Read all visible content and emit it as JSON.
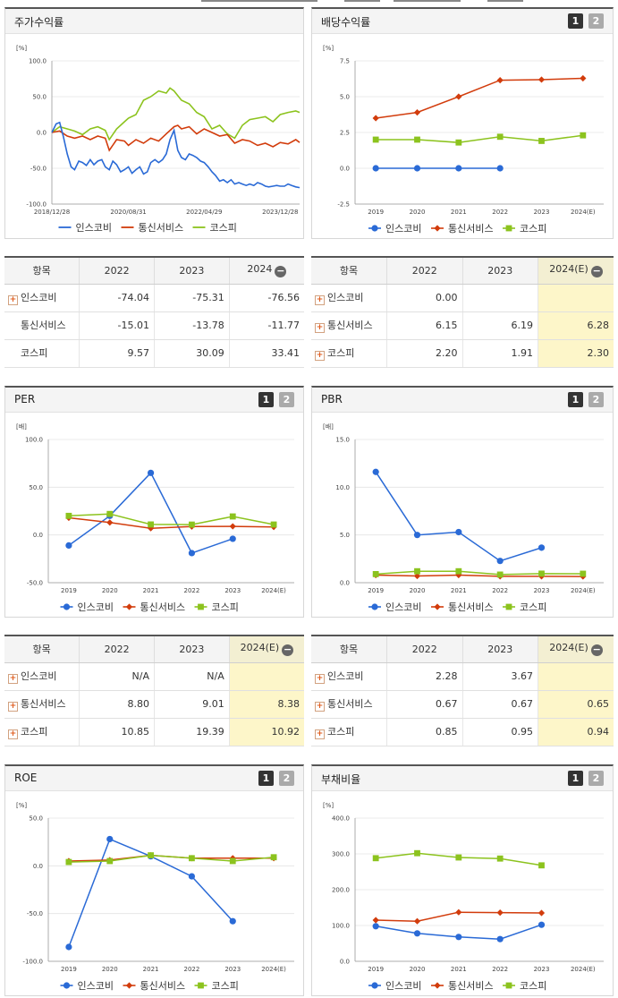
{
  "series_names": [
    "인스코비",
    "통신서비스",
    "코스피"
  ],
  "colors": {
    "inscobe": "#2a6ad6",
    "telecom": "#d23c0c",
    "kospi": "#8cc31e"
  },
  "series_markers": [
    "circle",
    "diamond",
    "square"
  ],
  "buttons": {
    "b1": "1",
    "b2": "2",
    "minus": "−",
    "plus": "+"
  },
  "panels": {
    "stock_return": {
      "title": "주가수익률"
    },
    "dividend": {
      "title": "배당수익률"
    },
    "per": {
      "title": "PER"
    },
    "pbr": {
      "title": "PBR"
    },
    "roe": {
      "title": "ROE"
    },
    "debt": {
      "title": "부채비율"
    }
  },
  "chart_data": [
    {
      "id": "stock_return",
      "type": "line",
      "title": "주가수익률",
      "unit": "[%]",
      "ylim": [
        -100,
        100
      ],
      "yticks": [
        "100.0",
        "50.0",
        "0.0",
        "-50.0",
        "-100.0"
      ],
      "xticks": [
        "2018/12/28",
        "2020/08/31",
        "2022/04/29",
        "2023/12/28"
      ],
      "x_range": [
        "2018-12-28",
        "2024-05-31"
      ],
      "series": [
        {
          "name": "인스코비",
          "x": [
            "2018-12-28",
            "2019-01-31",
            "2019-02-28",
            "2019-03-29",
            "2019-04-30",
            "2019-05-31",
            "2019-06-28",
            "2019-07-31",
            "2019-08-30",
            "2019-09-30",
            "2019-10-31",
            "2019-11-29",
            "2019-12-30",
            "2020-01-31",
            "2020-02-28",
            "2020-03-31",
            "2020-04-29",
            "2020-05-29",
            "2020-06-30",
            "2020-07-31",
            "2020-08-31",
            "2020-09-29",
            "2020-10-30",
            "2020-11-30",
            "2020-12-30",
            "2021-01-29",
            "2021-02-26",
            "2021-03-31",
            "2021-04-30",
            "2021-05-31",
            "2021-06-30",
            "2021-07-30",
            "2021-08-31",
            "2021-09-30",
            "2021-10-29",
            "2021-11-30",
            "2021-12-30",
            "2022-01-28",
            "2022-02-28",
            "2022-03-31",
            "2022-04-29",
            "2022-05-31",
            "2022-06-30",
            "2022-07-29",
            "2022-08-31",
            "2022-09-30",
            "2022-10-31",
            "2022-11-30",
            "2022-12-29",
            "2023-01-31",
            "2023-02-28",
            "2023-03-31",
            "2023-04-28",
            "2023-05-31",
            "2023-06-30",
            "2023-07-31",
            "2023-08-31",
            "2023-09-27",
            "2023-10-31",
            "2023-11-30",
            "2023-12-28",
            "2024-01-31",
            "2024-02-29",
            "2024-03-29",
            "2024-04-30",
            "2024-05-31"
          ],
          "values": [
            0,
            12,
            14,
            -5,
            -30,
            -48,
            -52,
            -40,
            -42,
            -46,
            -38,
            -45,
            -40,
            -38,
            -48,
            -52,
            -40,
            -45,
            -55,
            -52,
            -48,
            -57,
            -52,
            -48,
            -58,
            -55,
            -42,
            -38,
            -42,
            -38,
            -30,
            -10,
            3,
            -25,
            -35,
            -38,
            -30,
            -32,
            -35,
            -40,
            -42,
            -48,
            -55,
            -60,
            -68,
            -66,
            -70,
            -66,
            -72,
            -70,
            -72,
            -74,
            -72,
            -74,
            -70,
            -72,
            -75,
            -76,
            -75,
            -74,
            -75,
            -75,
            -72,
            -74,
            -76,
            -77
          ]
        },
        {
          "name": "통신서비스",
          "x": [
            "2018-12-28",
            "2019-02-28",
            "2019-04-30",
            "2019-06-28",
            "2019-08-30",
            "2019-10-31",
            "2019-12-30",
            "2020-02-28",
            "2020-03-31",
            "2020-05-29",
            "2020-07-31",
            "2020-08-31",
            "2020-10-30",
            "2020-12-30",
            "2021-02-26",
            "2021-04-30",
            "2021-06-30",
            "2021-08-31",
            "2021-09-30",
            "2021-10-29",
            "2021-12-30",
            "2022-02-28",
            "2022-04-29",
            "2022-06-30",
            "2022-08-31",
            "2022-10-31",
            "2022-12-29",
            "2023-02-28",
            "2023-04-28",
            "2023-06-30",
            "2023-08-31",
            "2023-10-31",
            "2023-12-28",
            "2024-02-29",
            "2024-04-30",
            "2024-05-31"
          ],
          "values": [
            0,
            2,
            -5,
            -8,
            -5,
            -10,
            -5,
            -8,
            -25,
            -10,
            -12,
            -18,
            -10,
            -15,
            -8,
            -12,
            -2,
            8,
            10,
            5,
            8,
            -2,
            5,
            0,
            -5,
            -3,
            -15,
            -10,
            -12,
            -18,
            -15,
            -20,
            -14,
            -16,
            -10,
            -14
          ]
        },
        {
          "name": "코스피",
          "x": [
            "2018-12-28",
            "2019-02-28",
            "2019-04-30",
            "2019-06-28",
            "2019-08-30",
            "2019-10-31",
            "2019-12-30",
            "2020-02-28",
            "2020-03-31",
            "2020-05-29",
            "2020-07-31",
            "2020-08-31",
            "2020-10-30",
            "2020-12-30",
            "2021-02-26",
            "2021-04-30",
            "2021-06-30",
            "2021-07-30",
            "2021-08-31",
            "2021-10-29",
            "2021-12-30",
            "2022-02-28",
            "2022-04-29",
            "2022-06-30",
            "2022-08-31",
            "2022-10-31",
            "2022-12-29",
            "2023-02-28",
            "2023-04-28",
            "2023-06-30",
            "2023-08-31",
            "2023-10-31",
            "2023-12-28",
            "2024-02-29",
            "2024-04-30",
            "2024-05-31"
          ],
          "values": [
            0,
            8,
            5,
            2,
            -3,
            5,
            8,
            3,
            -10,
            5,
            15,
            20,
            25,
            45,
            50,
            58,
            55,
            62,
            58,
            45,
            40,
            28,
            22,
            5,
            10,
            -2,
            -8,
            10,
            18,
            20,
            22,
            15,
            25,
            28,
            30,
            28
          ]
        }
      ]
    },
    {
      "id": "dividend",
      "type": "line",
      "title": "배당수익률",
      "unit": "[%]",
      "ylim": [
        -2.5,
        7.5
      ],
      "yticks": [
        "7.5",
        "5.0",
        "2.5",
        "0.0",
        "-2.5"
      ],
      "categories": [
        "2019",
        "2020",
        "2021",
        "2022",
        "2023",
        "2024(E)"
      ],
      "series": [
        {
          "name": "인스코비",
          "values": [
            0.0,
            0.0,
            0.0,
            0.0,
            null,
            null
          ]
        },
        {
          "name": "통신서비스",
          "values": [
            3.5,
            3.9,
            5.0,
            6.15,
            6.19,
            6.28
          ]
        },
        {
          "name": "코스피",
          "values": [
            2.0,
            2.0,
            1.8,
            2.2,
            1.91,
            2.3
          ]
        }
      ]
    },
    {
      "id": "per",
      "type": "line",
      "title": "PER",
      "unit": "[배]",
      "ylim": [
        -50,
        100
      ],
      "yticks": [
        "100.0",
        "50.0",
        "0.0",
        "-50.0"
      ],
      "categories": [
        "2019",
        "2020",
        "2021",
        "2022",
        "2023",
        "2024(E)"
      ],
      "series": [
        {
          "name": "인스코비",
          "values": [
            -11,
            20,
            65,
            -19,
            -4,
            null
          ]
        },
        {
          "name": "통신서비스",
          "values": [
            18,
            13,
            7,
            8.8,
            9.01,
            8.38
          ]
        },
        {
          "name": "코스피",
          "values": [
            20,
            22,
            11,
            10.85,
            19.39,
            10.92
          ]
        }
      ]
    },
    {
      "id": "pbr",
      "type": "line",
      "title": "PBR",
      "unit": "[배]",
      "ylim": [
        0,
        15
      ],
      "yticks": [
        "15.0",
        "10.0",
        "5.0",
        "0.0"
      ],
      "categories": [
        "2019",
        "2020",
        "2021",
        "2022",
        "2023",
        "2024(E)"
      ],
      "series": [
        {
          "name": "인스코비",
          "values": [
            11.6,
            5.0,
            5.3,
            2.28,
            3.67,
            null
          ]
        },
        {
          "name": "통신서비스",
          "values": [
            0.8,
            0.7,
            0.8,
            0.67,
            0.67,
            0.65
          ]
        },
        {
          "name": "코스피",
          "values": [
            0.9,
            1.2,
            1.2,
            0.85,
            0.95,
            0.94
          ]
        }
      ]
    },
    {
      "id": "roe",
      "type": "line",
      "title": "ROE",
      "unit": "[%]",
      "ylim": [
        -100,
        50
      ],
      "yticks": [
        "50.0",
        "0.0",
        "-50.0",
        "-100.0"
      ],
      "categories": [
        "2019",
        "2020",
        "2021",
        "2022",
        "2023",
        "2024(E)"
      ],
      "series": [
        {
          "name": "인스코비",
          "values": [
            -85,
            28,
            10,
            -11,
            -58,
            null
          ]
        },
        {
          "name": "통신서비스",
          "values": [
            5,
            6,
            11,
            8,
            8,
            8
          ]
        },
        {
          "name": "코스피",
          "values": [
            4,
            5,
            11,
            8,
            5,
            9
          ]
        }
      ]
    },
    {
      "id": "debt",
      "type": "line",
      "title": "부채비율",
      "unit": "[%]",
      "ylim": [
        0,
        400
      ],
      "yticks": [
        "400.0",
        "300.0",
        "200.0",
        "100.0",
        "0.0"
      ],
      "categories": [
        "2019",
        "2020",
        "2021",
        "2022",
        "2023",
        "2024(E)"
      ],
      "series": [
        {
          "name": "인스코비",
          "values": [
            98,
            78,
            68,
            62,
            102,
            null
          ]
        },
        {
          "name": "통신서비스",
          "values": [
            115,
            112,
            137,
            136,
            135,
            null
          ]
        },
        {
          "name": "코스피",
          "values": [
            288,
            302,
            290,
            287,
            268,
            null
          ]
        }
      ]
    }
  ],
  "tables": {
    "stock_return": {
      "headers": [
        "항목",
        "2022",
        "2023",
        "2024"
      ],
      "rows": [
        {
          "name": "인스코비",
          "plus": true,
          "values": [
            "-74.04",
            "-75.31",
            "-76.56"
          ]
        },
        {
          "name": "통신서비스",
          "plus": false,
          "values": [
            "-15.01",
            "-13.78",
            "-11.77"
          ]
        },
        {
          "name": "코스피",
          "plus": false,
          "values": [
            "9.57",
            "30.09",
            "33.41"
          ]
        }
      ]
    },
    "dividend": {
      "headers": [
        "항목",
        "2022",
        "2023",
        "2024(E)"
      ],
      "rows": [
        {
          "name": "인스코비",
          "plus": true,
          "values": [
            "0.00",
            "",
            ""
          ]
        },
        {
          "name": "통신서비스",
          "plus": true,
          "values": [
            "6.15",
            "6.19",
            "6.28"
          ]
        },
        {
          "name": "코스피",
          "plus": true,
          "values": [
            "2.20",
            "1.91",
            "2.30"
          ]
        }
      ]
    },
    "per": {
      "headers": [
        "항목",
        "2022",
        "2023",
        "2024(E)"
      ],
      "rows": [
        {
          "name": "인스코비",
          "plus": true,
          "values": [
            "N/A",
            "N/A",
            ""
          ]
        },
        {
          "name": "통신서비스",
          "plus": true,
          "values": [
            "8.80",
            "9.01",
            "8.38"
          ]
        },
        {
          "name": "코스피",
          "plus": true,
          "values": [
            "10.85",
            "19.39",
            "10.92"
          ]
        }
      ]
    },
    "pbr": {
      "headers": [
        "항목",
        "2022",
        "2023",
        "2024(E)"
      ],
      "rows": [
        {
          "name": "인스코비",
          "plus": true,
          "values": [
            "2.28",
            "3.67",
            ""
          ]
        },
        {
          "name": "통신서비스",
          "plus": true,
          "values": [
            "0.67",
            "0.67",
            "0.65"
          ]
        },
        {
          "name": "코스피",
          "plus": true,
          "values": [
            "0.85",
            "0.95",
            "0.94"
          ]
        }
      ]
    }
  }
}
